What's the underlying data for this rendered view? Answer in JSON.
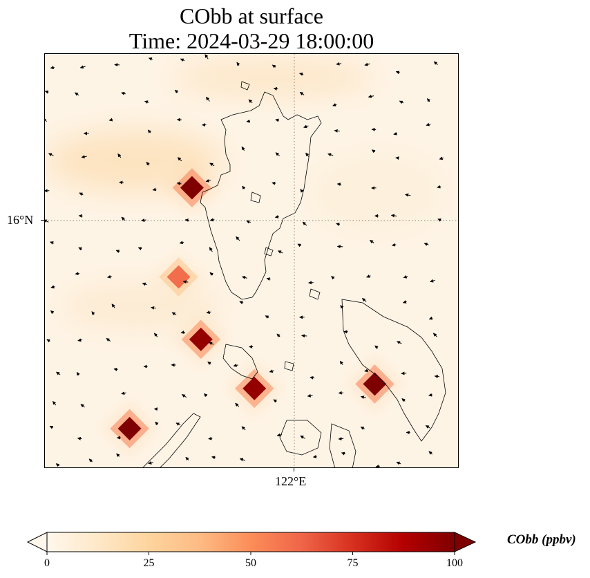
{
  "title": {
    "line1": "CObb at surface",
    "line2": "Time: 2024-03-29 18:00:00"
  },
  "axes": {
    "lat_tick": "16°N",
    "lon_tick": "122°E"
  },
  "colorbar": {
    "label": "CObb (ppbv)",
    "min": 0,
    "max": 100,
    "extend": "both",
    "ticks": [
      "0",
      "25",
      "50",
      "75",
      "100"
    ],
    "colormap": "OrRd",
    "colors": [
      "#fff7ec",
      "#fee8c8",
      "#fdd49e",
      "#fdbb84",
      "#fc8d59",
      "#ef6548",
      "#d7301f",
      "#b30000",
      "#7f0000"
    ]
  },
  "chart_data": {
    "type": "heatmap",
    "title": "CObb at surface\nTime: 2024-03-29 18:00:00",
    "variable": "CObb",
    "units": "ppbv",
    "level": "surface",
    "time": "2024-03-29 18:00:00",
    "gridlines": "dotted",
    "overlays": [
      "coastlines",
      "wind vectors"
    ],
    "hotspots": [
      {
        "lon": 120.6,
        "lat": 17.3,
        "value": 100
      },
      {
        "lon": 120.3,
        "lat": 15.3,
        "value": 60
      },
      {
        "lon": 120.8,
        "lat": 13.9,
        "value": 95
      },
      {
        "lon": 122.0,
        "lat": 12.8,
        "value": 95
      },
      {
        "lon": 124.7,
        "lat": 12.9,
        "value": 100
      },
      {
        "lon": 119.2,
        "lat": 11.9,
        "value": 100
      }
    ]
  }
}
